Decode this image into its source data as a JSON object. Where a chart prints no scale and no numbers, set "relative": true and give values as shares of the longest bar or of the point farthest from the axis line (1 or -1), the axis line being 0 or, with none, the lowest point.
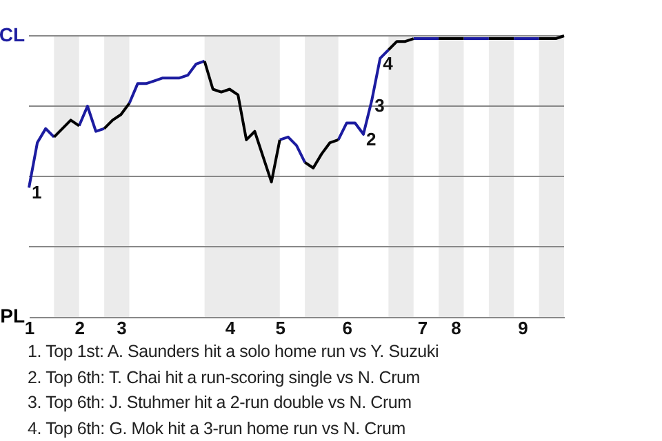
{
  "chart_data": {
    "type": "line",
    "categories": [
      "1",
      null,
      null,
      null,
      null,
      null,
      "2",
      null,
      null,
      null,
      null,
      "3",
      null,
      null,
      null,
      null,
      null,
      null,
      null,
      null,
      null,
      null,
      null,
      null,
      "4",
      null,
      null,
      null,
      null,
      null,
      "5",
      null,
      null,
      null,
      null,
      null,
      null,
      null,
      "6",
      null,
      null,
      null,
      null,
      null,
      null,
      null,
      null,
      "7",
      null,
      null,
      null,
      "8",
      null,
      null,
      null,
      null,
      null,
      null,
      null,
      "9",
      null,
      null,
      null,
      null,
      null
    ],
    "relative": true,
    "series": [
      {
        "color": "#1c1ca0",
        "values": [
          0.46,
          0.62,
          0.67,
          0.64,
          null,
          null,
          0.68,
          0.75,
          0.66,
          0.67,
          null,
          null,
          0.76,
          0.83,
          0.83,
          0.84,
          0.85,
          0.85,
          0.85,
          0.86,
          0.9,
          0.91,
          null,
          null,
          null,
          null,
          null,
          null,
          null,
          null,
          0.63,
          0.64,
          0.61,
          0.55,
          null,
          null,
          null,
          0.63,
          0.69,
          0.69,
          0.65,
          0.77,
          0.92,
          0.95,
          null,
          null,
          0.99,
          0.99,
          0.99,
          0.99,
          null,
          null,
          0.99,
          0.99,
          0.99,
          0.99,
          null,
          null,
          0.99,
          0.99,
          0.99,
          0.99,
          null,
          null,
          null
        ]
      },
      {
        "color": "#000000",
        "values": [
          null,
          null,
          null,
          0.64,
          0.67,
          0.7,
          0.68,
          null,
          null,
          0.67,
          0.7,
          0.72,
          0.76,
          null,
          null,
          null,
          null,
          null,
          null,
          null,
          null,
          0.91,
          0.81,
          0.8,
          0.81,
          0.79,
          0.63,
          0.66,
          0.57,
          0.48,
          0.63,
          null,
          null,
          0.55,
          0.53,
          0.58,
          0.62,
          0.63,
          null,
          null,
          null,
          null,
          null,
          0.95,
          0.98,
          0.98,
          0.99,
          null,
          null,
          0.99,
          0.99,
          0.99,
          0.99,
          null,
          null,
          0.99,
          0.99,
          0.99,
          0.99,
          null,
          null,
          0.99,
          0.99,
          0.99,
          1
        ]
      }
    ],
    "legend": false,
    "marker": "none",
    "line_style": "solid",
    "ref_lines": [
      {
        "axis": "y",
        "value": 0.25,
        "color": "#888888"
      },
      {
        "axis": "y",
        "value": 0.5,
        "color": "#888888"
      },
      {
        "axis": "y",
        "value": 0.75,
        "color": "#888888"
      },
      {
        "axis": "y",
        "value": 1,
        "color": "#888888"
      }
    ],
    "annotations": [
      "CL",
      "PL",
      {
        "text": "1",
        "x": "1",
        "y": 0.46
      },
      {
        "text": "2",
        "y": 0.65
      },
      {
        "text": "3",
        "y": 0.77
      },
      {
        "text": "4",
        "y": 0.92
      },
      "1. Top 1st: A. Saunders hit a solo home run vs Y. Suzuki",
      "2. Top 6th: T. Chai hit a run-scoring single vs N. Crum",
      "3. Top 6th: J. Stuhmer hit a 2-run double vs N. Crum",
      "4. Top 6th: G. Mok hit a 3-run home run vs N. Crum"
    ]
  }
}
